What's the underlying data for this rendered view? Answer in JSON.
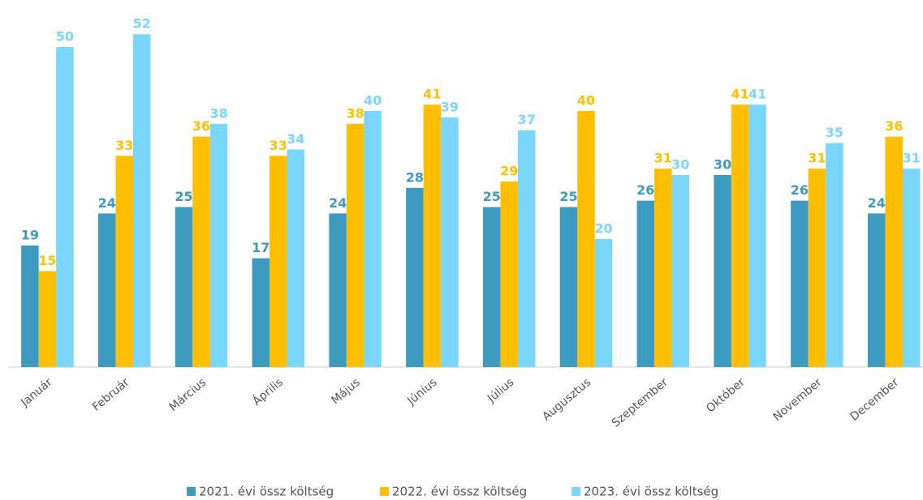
{
  "chart_data": {
    "type": "bar",
    "categories": [
      "Január",
      "Február",
      "Március",
      "Április",
      "Május",
      "Június",
      "Július",
      "Augusztus",
      "Szeptember",
      "Október",
      "November",
      "December"
    ],
    "series": [
      {
        "name": "2021. évi össz költség",
        "color": "#3d9bc1",
        "values": [
          19,
          24,
          25,
          17,
          24,
          28,
          25,
          25,
          26,
          30,
          26,
          24
        ]
      },
      {
        "name": "2022. évi össz költség",
        "color": "#ffbf00",
        "values": [
          15,
          33,
          36,
          33,
          38,
          41,
          29,
          40,
          31,
          41,
          31,
          36
        ]
      },
      {
        "name": "2023. évi össz költség",
        "color": "#7ad7fb",
        "values": [
          50,
          52,
          38,
          34,
          40,
          39,
          37,
          20,
          30,
          41,
          35,
          31
        ]
      }
    ],
    "legend": "bottom"
  }
}
